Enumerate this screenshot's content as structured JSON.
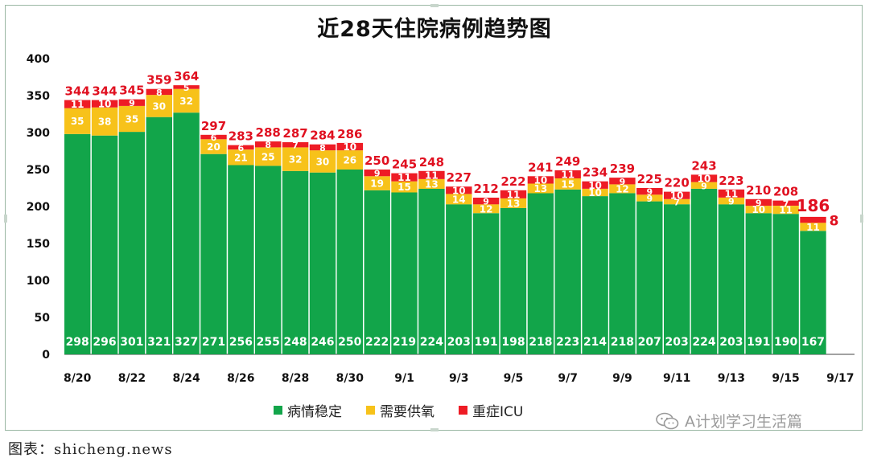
{
  "title": "近28天住院病例趋势图",
  "chart_data": {
    "type": "bar",
    "stacked": true,
    "categories": [
      "8/20",
      "8/21",
      "8/22",
      "8/23",
      "8/24",
      "8/25",
      "8/26",
      "8/27",
      "8/28",
      "8/29",
      "8/30",
      "8/31",
      "9/1",
      "9/2",
      "9/3",
      "9/4",
      "9/5",
      "9/6",
      "9/7",
      "9/8",
      "9/9",
      "9/10",
      "9/11",
      "9/12",
      "9/13",
      "9/14",
      "9/15",
      "9/16",
      "9/17"
    ],
    "x_tick_labels": [
      "8/20",
      "8/22",
      "8/24",
      "8/26",
      "8/28",
      "8/30",
      "9/1",
      "9/3",
      "9/5",
      "9/7",
      "9/9",
      "9/11",
      "9/13",
      "9/15",
      "9/17"
    ],
    "series": [
      {
        "name": "病情稳定",
        "color": "#12a54a",
        "values": [
          298,
          296,
          301,
          321,
          327,
          271,
          256,
          255,
          248,
          246,
          250,
          222,
          219,
          224,
          203,
          191,
          198,
          218,
          223,
          214,
          218,
          207,
          203,
          224,
          203,
          191,
          190,
          167,
          null
        ]
      },
      {
        "name": "需要供氧",
        "color": "#f7c21a",
        "values": [
          35,
          38,
          35,
          30,
          32,
          20,
          21,
          25,
          32,
          30,
          26,
          19,
          15,
          13,
          14,
          12,
          13,
          13,
          15,
          10,
          12,
          9,
          7,
          9,
          9,
          10,
          11,
          11,
          null
        ]
      },
      {
        "name": "重症ICU",
        "color": "#ee1c25",
        "values": [
          11,
          10,
          9,
          8,
          5,
          6,
          6,
          8,
          7,
          8,
          10,
          9,
          11,
          11,
          10,
          9,
          11,
          10,
          11,
          10,
          9,
          9,
          10,
          10,
          11,
          9,
          7,
          8,
          null
        ]
      }
    ],
    "totals": [
      344,
      344,
      345,
      359,
      364,
      297,
      283,
      288,
      287,
      284,
      286,
      250,
      245,
      248,
      227,
      212,
      222,
      241,
      249,
      234,
      239,
      225,
      220,
      243,
      223,
      210,
      208,
      186,
      null
    ],
    "ylim": [
      0,
      400
    ],
    "yticks": [
      0,
      50,
      100,
      150,
      200,
      250,
      300,
      350,
      400
    ],
    "legend_position": "bottom",
    "grid": false
  },
  "watermark": "A计划学习生活篇",
  "source": "图表：shicheng.news"
}
